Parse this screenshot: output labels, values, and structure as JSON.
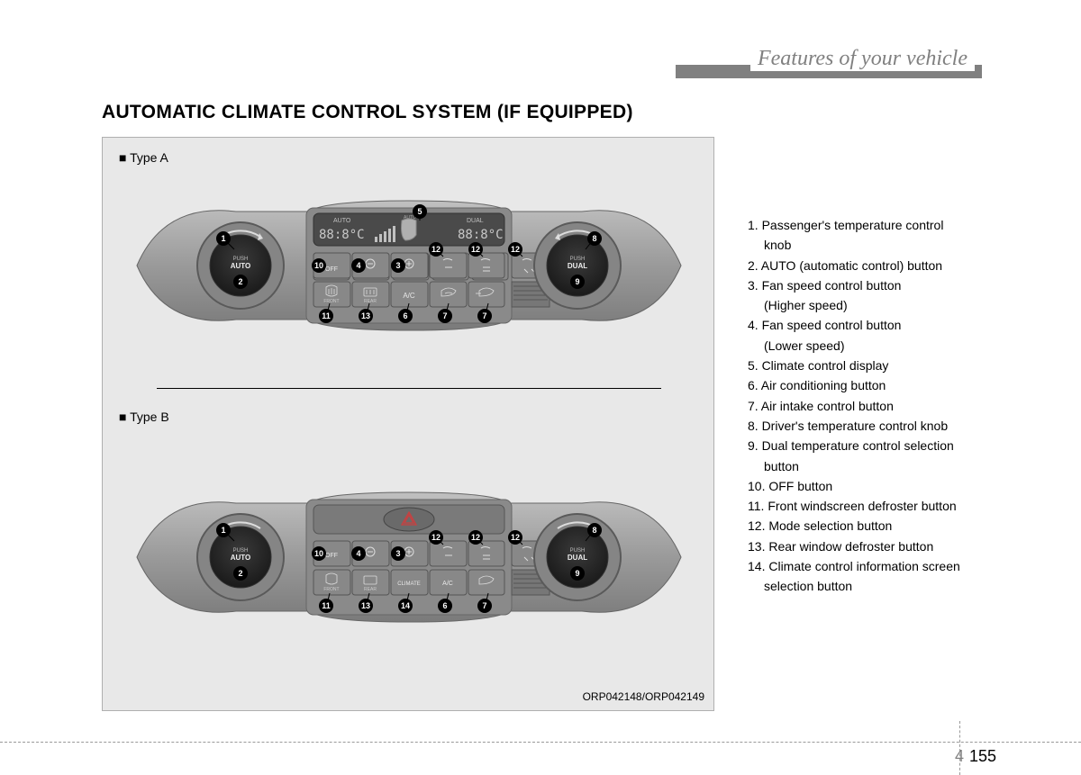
{
  "header": {
    "chapter_title": "Features of your vehicle"
  },
  "section": {
    "title": "AUTOMATIC CLIMATE CONTROL SYSTEM (IF EQUIPPED)"
  },
  "figure": {
    "typeA_label": "■ Type A",
    "typeB_label": "■ Type B",
    "reference": "ORP042148/ORP042149",
    "display": {
      "auto_label": "AUTO",
      "dual_label": "DUAL",
      "temp_left": "88:8°C",
      "temp_right": "88:8°C"
    },
    "knob": {
      "push": "PUSH",
      "auto": "AUTO",
      "dual": "DUAL"
    },
    "buttons": {
      "off": "OFF",
      "ac": "A/C",
      "climate": "CLIMATE",
      "front": "FRONT",
      "rear": "REAR"
    },
    "callouts_A": [
      "1",
      "2",
      "3",
      "4",
      "5",
      "6",
      "7",
      "7",
      "8",
      "9",
      "10",
      "11",
      "12",
      "12",
      "12",
      "13"
    ],
    "callouts_B": [
      "1",
      "2",
      "3",
      "4",
      "6",
      "7",
      "8",
      "9",
      "10",
      "11",
      "12",
      "12",
      "12",
      "13",
      "14"
    ]
  },
  "legend": {
    "items": [
      {
        "n": "1.",
        "t": "Passenger's temperature control",
        "s": "knob"
      },
      {
        "n": "2.",
        "t": "AUTO (automatic control) button"
      },
      {
        "n": "3.",
        "t": "Fan speed control button",
        "s": "(Higher speed)"
      },
      {
        "n": "4.",
        "t": "Fan speed control button",
        "s": "(Lower speed)"
      },
      {
        "n": "5.",
        "t": "Climate control display"
      },
      {
        "n": "6.",
        "t": "Air conditioning button"
      },
      {
        "n": "7.",
        "t": "Air intake control button"
      },
      {
        "n": "8.",
        "t": "Driver's temperature control knob"
      },
      {
        "n": "9.",
        "t": "Dual temperature control selection",
        "s": "button"
      },
      {
        "n": "10.",
        "t": "OFF button"
      },
      {
        "n": "11.",
        "t": "Front windscreen defroster button"
      },
      {
        "n": "12.",
        "t": "Mode selection button"
      },
      {
        "n": "13.",
        "t": "Rear window defroster button"
      },
      {
        "n": "14.",
        "t": "Climate control information screen",
        "s": "selection button"
      }
    ]
  },
  "footer": {
    "chapter": "4",
    "page": "155"
  },
  "colors": {
    "panel_body": "#9a9a9a",
    "panel_dark": "#6b6b6b",
    "panel_light": "#c8c8c8",
    "display_bg": "#5a5a5a",
    "display_text": "#d0d0d0",
    "knob_outer": "#7a7a7a",
    "knob_inner": "#2a2a2a",
    "button_fill": "#888888",
    "button_stroke": "#555555",
    "callout_fill": "#000000",
    "callout_text": "#ffffff",
    "leader": "#000000"
  }
}
